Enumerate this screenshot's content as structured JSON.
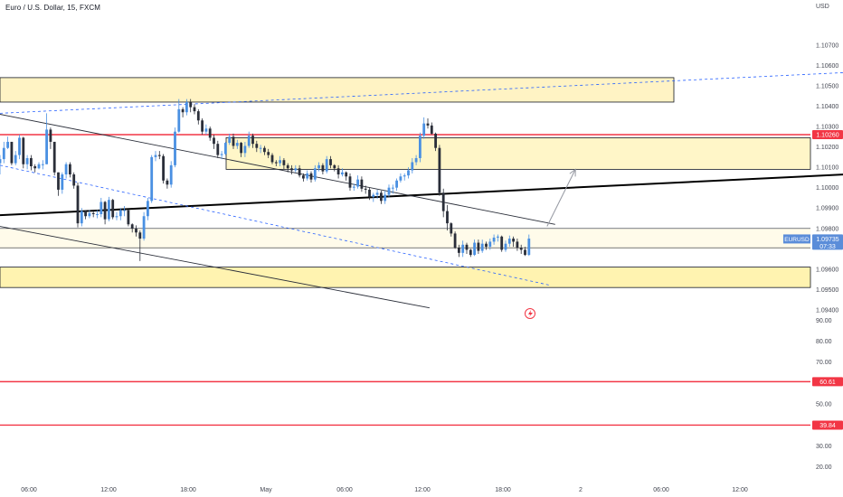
{
  "header": {
    "title": "Euro / U.S. Dollar, 15, FXCM",
    "currency": "USD"
  },
  "chart_data": [
    {
      "type": "candlestick",
      "symbol": "EURUSD",
      "timeframe": "15",
      "source": "FXCM",
      "x_ticks": [
        "06:00",
        "12:00",
        "18:00",
        "May",
        "06:00",
        "12:00",
        "18:00",
        "2",
        "06:00",
        "12:00"
      ],
      "y_ticks": [
        "1.10700",
        "1.10600",
        "1.10500",
        "1.10400",
        "1.10300",
        "1.10200",
        "1.10100",
        "1.10000",
        "1.09900",
        "1.09800",
        "1.09600",
        "1.09500",
        "1.09400"
      ],
      "ylim": [
        1.0936,
        1.1085
      ],
      "last_price": {
        "symbol": "EURUSD",
        "value": "1.09735",
        "countdown": "07:33",
        "color": "#5b8dd9"
      },
      "marked_level": {
        "value": "1.10260",
        "color": "#f23645"
      },
      "supply_zone": [
        1.1042,
        1.1054
      ],
      "demand_zone": [
        1.0951,
        1.0961
      ],
      "consolidation_zone": [
        1.1009,
        1.10245
      ],
      "series": [
        {
          "up_color": "#4a90e2",
          "down_color": "#2a2e39",
          "close": [
            1.1014,
            1.10195,
            1.10225,
            1.1012,
            1.1016,
            1.10245,
            1.10115,
            1.10145,
            1.10105,
            1.10095,
            1.10115,
            1.10115,
            1.10285,
            1.10225,
            1.10075,
            1.0999,
            1.10065,
            1.10115,
            1.10065,
            1.1001,
            1.09825,
            1.09885,
            1.0986,
            1.09875,
            1.0987,
            1.0987,
            1.0993,
            1.09845,
            1.0994,
            1.09855,
            1.0986,
            1.0989,
            1.0989,
            1.0982,
            1.098,
            1.0978,
            1.0975,
            1.0986,
            1.09935,
            1.1015,
            1.1016,
            1.10155,
            1.10035,
            1.10015,
            1.1011,
            1.10275,
            1.10385,
            1.1037,
            1.1042,
            1.10395,
            1.10375,
            1.1033,
            1.10275,
            1.1029,
            1.10245,
            1.10215,
            1.1016,
            1.10165,
            1.1022,
            1.1025,
            1.10205,
            1.1022,
            1.1017,
            1.10205,
            1.10255,
            1.10215,
            1.10195,
            1.10195,
            1.10175,
            1.1016,
            1.10125,
            1.1012,
            1.10135,
            1.1011,
            1.10095,
            1.10085,
            1.10095,
            1.1006,
            1.10045,
            1.1007,
            1.1004,
            1.10095,
            1.1011,
            1.1008,
            1.1014,
            1.1011,
            1.10095,
            1.10065,
            1.10075,
            1.10055,
            1.1,
            1.10005,
            1.1004,
            1.09995,
            1.0999,
            1.09955,
            1.09965,
            1.09975,
            1.09935,
            1.09965,
            1.1,
            1.1,
            1.10035,
            1.10055,
            1.1006,
            1.10085,
            1.10125,
            1.10145,
            1.10255,
            1.10315,
            1.10305,
            1.10265,
            1.10195,
            1.09975,
            1.09885,
            1.09825,
            1.09775,
            1.09705,
            1.0968,
            1.0972,
            1.09695,
            1.0967,
            1.0973,
            1.0969,
            1.09725,
            1.0971,
            1.09735,
            1.09755,
            1.0976,
            1.09695,
            1.09725,
            1.0975,
            1.09735,
            1.09705,
            1.09695,
            1.0967,
            1.0975
          ],
          "high": [
            1.1016,
            1.10225,
            1.1025,
            1.10225,
            1.1018,
            1.1026,
            1.1025,
            1.1016,
            1.1016,
            1.10115,
            1.10125,
            1.10135,
            1.10365,
            1.10295,
            1.10225,
            1.10075,
            1.10075,
            1.10125,
            1.10125,
            1.10075,
            1.10025,
            1.099,
            1.0989,
            1.0989,
            1.09885,
            1.0989,
            1.0995,
            1.09935,
            1.09955,
            1.09945,
            1.0988,
            1.099,
            1.0991,
            1.0989,
            1.09825,
            1.09815,
            1.0979,
            1.0988,
            1.0995,
            1.1016,
            1.1018,
            1.1018,
            1.10165,
            1.10045,
            1.1013,
            1.10295,
            1.10435,
            1.10395,
            1.10435,
            1.10435,
            1.1041,
            1.10385,
            1.1034,
            1.1031,
            1.103,
            1.1026,
            1.1023,
            1.1018,
            1.10225,
            1.10265,
            1.10265,
            1.10235,
            1.10225,
            1.10225,
            1.10275,
            1.10265,
            1.1023,
            1.1021,
            1.10205,
            1.1019,
            1.1017,
            1.10135,
            1.10155,
            1.10145,
            1.1012,
            1.1011,
            1.1011,
            1.1011,
            1.1007,
            1.10085,
            1.1008,
            1.1011,
            1.10125,
            1.1012,
            1.10155,
            1.10155,
            1.10115,
            1.1011,
            1.10095,
            1.1008,
            1.1007,
            1.1002,
            1.1006,
            1.10055,
            1.1001,
            1.1,
            1.09975,
            1.0999,
            1.09985,
            1.09985,
            1.10015,
            1.10015,
            1.10045,
            1.1007,
            1.1007,
            1.101,
            1.10145,
            1.1016,
            1.1027,
            1.10345,
            1.1034,
            1.1032,
            1.1027,
            1.1021,
            1.09995,
            1.09915,
            1.0983,
            1.09785,
            1.0972,
            1.0974,
            1.0973,
            1.097,
            1.09745,
            1.09745,
            1.09745,
            1.09735,
            1.0975,
            1.0977,
            1.0977,
            1.09765,
            1.0974,
            1.09765,
            1.0976,
            1.0975,
            1.0972,
            1.0971,
            1.0977
          ],
          "low": [
            1.10065,
            1.1012,
            1.1019,
            1.1011,
            1.1011,
            1.1014,
            1.10095,
            1.1009,
            1.10085,
            1.10075,
            1.1009,
            1.1009,
            1.10115,
            1.1019,
            1.1006,
            1.0996,
            1.0997,
            1.10045,
            1.1005,
            1.09995,
            1.09805,
            1.0981,
            1.09845,
            1.0985,
            1.09855,
            1.0985,
            1.09855,
            1.0982,
            1.09835,
            1.09845,
            1.0984,
            1.0984,
            1.0986,
            1.0981,
            1.0978,
            1.0976,
            1.0964,
            1.0974,
            1.0984,
            1.09925,
            1.1013,
            1.1014,
            1.1002,
            1.09995,
            1.1,
            1.101,
            1.1027,
            1.10345,
            1.10355,
            1.1037,
            1.1036,
            1.1031,
            1.1026,
            1.1026,
            1.1023,
            1.1019,
            1.10145,
            1.1014,
            1.1016,
            1.1021,
            1.1019,
            1.1019,
            1.1015,
            1.1015,
            1.10195,
            1.10195,
            1.10175,
            1.1017,
            1.1016,
            1.10145,
            1.10115,
            1.10105,
            1.10105,
            1.1009,
            1.10075,
            1.10065,
            1.10075,
            1.1005,
            1.1003,
            1.10035,
            1.10025,
            1.1003,
            1.1008,
            1.10065,
            1.1007,
            1.10095,
            1.1008,
            1.10045,
            1.10055,
            1.10035,
            1.09985,
            1.09985,
            1.09995,
            1.0998,
            1.0997,
            1.0994,
            1.0993,
            1.09945,
            1.0992,
            1.0992,
            1.09955,
            1.0997,
            1.09985,
            1.10025,
            1.10035,
            1.10045,
            1.1007,
            1.1011,
            1.10125,
            1.1024,
            1.1029,
            1.1026,
            1.1018,
            1.0996,
            1.09855,
            1.0979,
            1.0976,
            1.097,
            1.0966,
            1.0966,
            1.09675,
            1.0966,
            1.09665,
            1.09675,
            1.0968,
            1.09695,
            1.09695,
            1.0972,
            1.09735,
            1.09685,
            1.09685,
            1.0971,
            1.0971,
            1.0969,
            1.09675,
            1.09665,
            1.09665
          ]
        }
      ],
      "annotations": [
        {
          "label": "trendline-black-thick",
          "from": [
            0,
            1.09865
          ],
          "to": [
            1.2,
            1.10095
          ]
        },
        {
          "label": "trendline-black-descending",
          "from": [
            0,
            1.1036
          ],
          "to": [
            0.685,
            1.0982
          ]
        },
        {
          "label": "trendline-black-lower",
          "from": [
            0,
            1.0981
          ],
          "to": [
            0.53,
            1.0941
          ]
        },
        {
          "label": "trendline-blue-dotted-upper",
          "from": [
            0,
            1.10365
          ],
          "to": [
            1.2,
            1.10595
          ]
        },
        {
          "label": "trendline-blue-dotted-lower",
          "from": [
            0,
            1.1011
          ],
          "to": [
            0.68,
            1.0952
          ]
        },
        {
          "label": "projection-arrow",
          "from": [
            0.675,
            1.0981
          ],
          "to": [
            0.71,
            1.1009
          ]
        }
      ]
    },
    {
      "type": "line",
      "title": "",
      "y_ticks": [
        "90.00",
        "80.00",
        "70.00",
        "60.00",
        "50.00",
        "40.00",
        "30.00",
        "20.00"
      ],
      "ylim": [
        15,
        91
      ],
      "levels": [
        {
          "value": "60.61",
          "color": "#f23645"
        },
        {
          "value": "39.84",
          "color": "#f23645"
        }
      ]
    }
  ]
}
